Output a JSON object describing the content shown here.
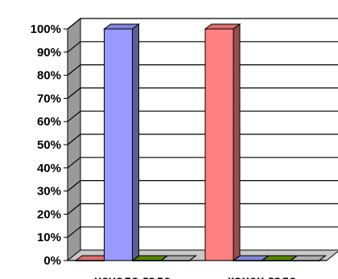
{
  "chart_data": {
    "type": "bar",
    "title": "",
    "xlabel": "",
    "ylabel": "",
    "ylim": [
      0,
      100
    ],
    "y_ticks": [
      "0%",
      "10%",
      "20%",
      "30%",
      "40%",
      "50%",
      "60%",
      "70%",
      "80%",
      "90%",
      "100%"
    ],
    "categories": [
      "начало года",
      "конец года"
    ],
    "series": [
      {
        "color": "#ff8080",
        "values": [
          0,
          100
        ]
      },
      {
        "color": "#9999ff",
        "values": [
          100,
          0
        ]
      },
      {
        "color": "#669900",
        "values": [
          0,
          0
        ]
      },
      {
        "color": "#cccccc",
        "values": [
          0,
          0
        ]
      }
    ],
    "style": "3d-column",
    "grid": true,
    "legend": "none"
  }
}
